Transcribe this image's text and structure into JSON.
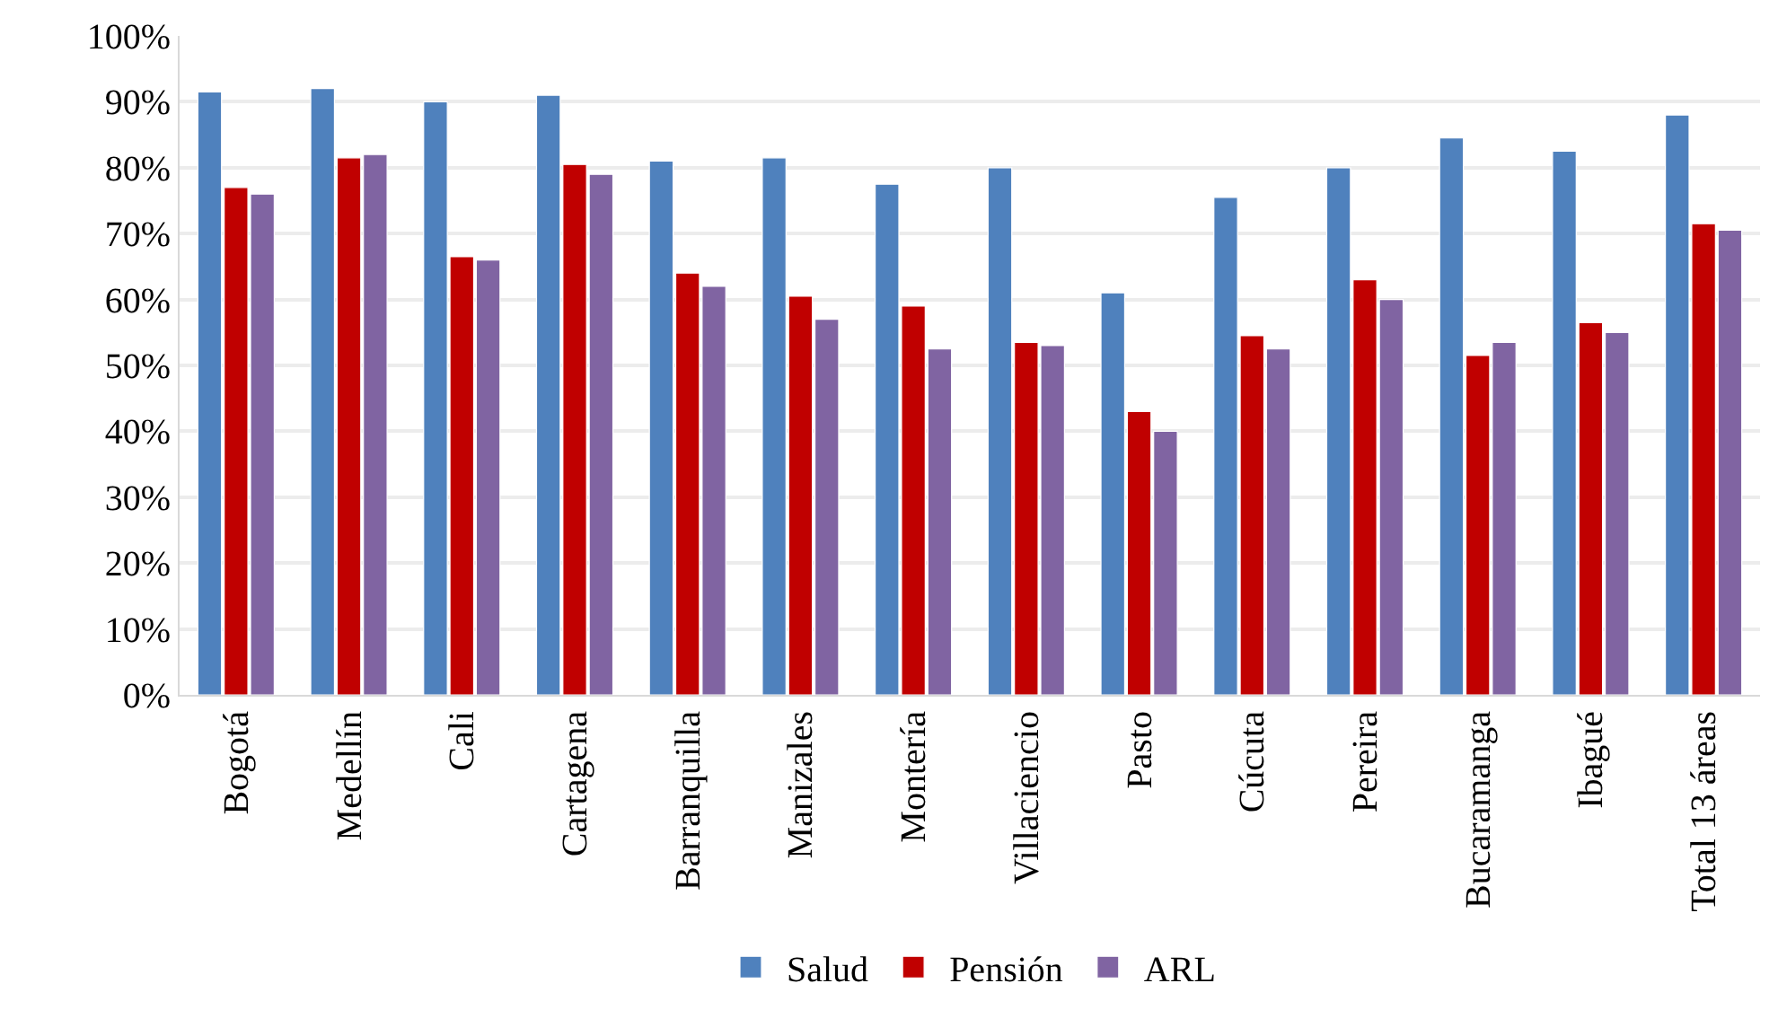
{
  "chart_data": {
    "type": "bar",
    "categories": [
      "Bogotá",
      "Medellín",
      "Cali",
      "Cartagena",
      "Barranquilla",
      "Manizales",
      "Montería",
      "Villaciencio",
      "Pasto",
      "Cúcuta",
      "Pereira",
      "Bucaramanga",
      "Ibagué",
      "Total 13 áreas"
    ],
    "series": [
      {
        "name": "Salud",
        "color": "#4f81bd",
        "values": [
          91.5,
          92,
          90,
          91,
          81,
          81.5,
          77.5,
          80,
          61,
          75.5,
          80,
          84.5,
          82.5,
          88
        ]
      },
      {
        "name": "Pensión",
        "color": "#c00000",
        "values": [
          77,
          81.5,
          66.5,
          80.5,
          64,
          60.5,
          59,
          53.5,
          43,
          54.5,
          63,
          51.5,
          56.5,
          71.5
        ]
      },
      {
        "name": "ARL",
        "color": "#8064a2",
        "values": [
          76,
          82,
          66,
          79,
          62,
          57,
          52.5,
          53,
          40,
          52.5,
          60,
          53.5,
          55,
          70.5
        ]
      }
    ],
    "ylim": [
      0,
      100
    ],
    "yticks": [
      {
        "value": 0,
        "label": "0%"
      },
      {
        "value": 10,
        "label": "10%"
      },
      {
        "value": 20,
        "label": "20%"
      },
      {
        "value": 30,
        "label": "30%"
      },
      {
        "value": 40,
        "label": "40%"
      },
      {
        "value": 50,
        "label": "50%"
      },
      {
        "value": 60,
        "label": "60%"
      },
      {
        "value": 70,
        "label": "70%"
      },
      {
        "value": 80,
        "label": "80%"
      },
      {
        "value": 90,
        "label": "90%"
      },
      {
        "value": 100,
        "label": "100%"
      }
    ],
    "grid": "y",
    "legend": "bottom"
  }
}
